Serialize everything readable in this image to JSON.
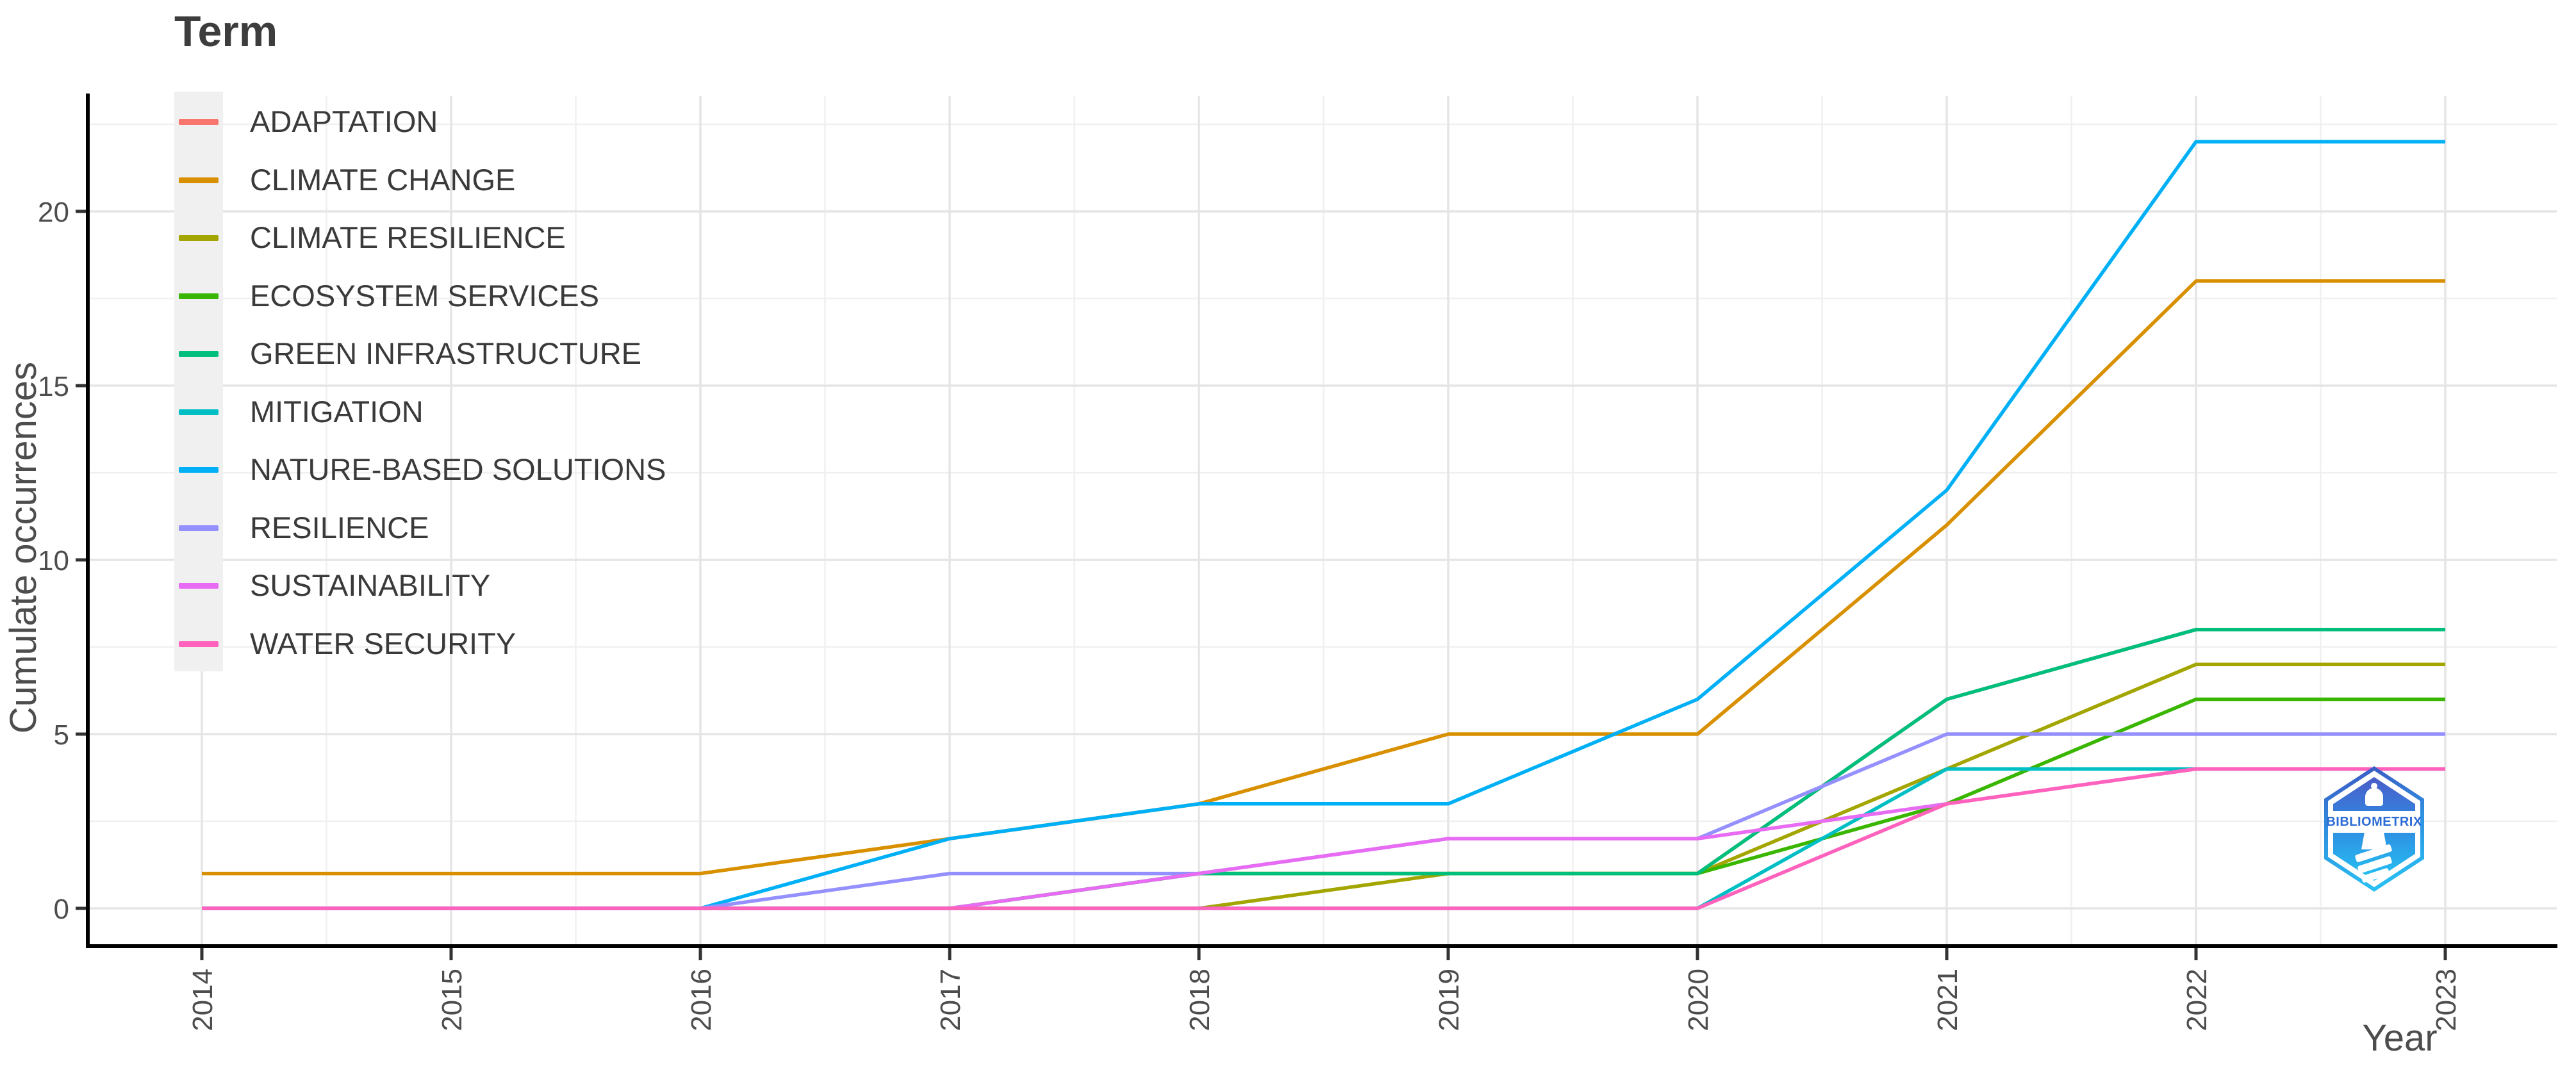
{
  "legend": {
    "title": "Term"
  },
  "x_axis": {
    "title": "Year",
    "tick_labels": [
      "2014",
      "2015",
      "2016",
      "2017",
      "2018",
      "2019",
      "2020",
      "2021",
      "2022",
      "2023"
    ]
  },
  "y_axis": {
    "title": "Cumulate occurrences",
    "tick_labels": [
      "0",
      "5",
      "10",
      "15",
      "20"
    ]
  },
  "watermark": {
    "text": "BIBLIOMETRIX"
  },
  "colors": {
    "axis_text": "#4d4d4d",
    "axis_line": "#000000",
    "tick_mark": "#333333",
    "grid_major": "#e5e5e5",
    "grid_minor": "#f0f0f0",
    "legend_key_bg": "#f0f0f0",
    "legend_text": "#3a3a3a"
  },
  "chart_data": {
    "type": "line",
    "title": "Term",
    "xlabel": "Year",
    "ylabel": "Cumulate occurrences",
    "x": [
      2014,
      2015,
      2016,
      2017,
      2018,
      2019,
      2020,
      2021,
      2022,
      2023
    ],
    "ylim": [
      0,
      22.5
    ],
    "yticks": [
      0,
      5,
      10,
      15,
      20
    ],
    "grid": "major and minor, light gray on white",
    "legend_position": "inside top-left",
    "series": [
      {
        "name": "ADAPTATION",
        "color": "#F8766D",
        "values": [
          0,
          0,
          0,
          0,
          1,
          1,
          1,
          6,
          8,
          8
        ]
      },
      {
        "name": "CLIMATE CHANGE",
        "color": "#D89000",
        "values": [
          1,
          1,
          1,
          2,
          3,
          5,
          5,
          11,
          18,
          18
        ]
      },
      {
        "name": "CLIMATE RESILIENCE",
        "color": "#A3A500",
        "values": [
          0,
          0,
          0,
          0,
          0,
          1,
          1,
          4,
          7,
          7
        ]
      },
      {
        "name": "ECOSYSTEM SERVICES",
        "color": "#39B600",
        "values": [
          0,
          0,
          0,
          0,
          1,
          1,
          1,
          3,
          6,
          6
        ]
      },
      {
        "name": "GREEN INFRASTRUCTURE",
        "color": "#00BF7D",
        "values": [
          0,
          0,
          0,
          0,
          1,
          1,
          1,
          6,
          8,
          8
        ]
      },
      {
        "name": "MITIGATION",
        "color": "#00BFC4",
        "values": [
          0,
          0,
          0,
          0,
          0,
          0,
          0,
          4,
          4,
          4
        ]
      },
      {
        "name": "NATURE-BASED SOLUTIONS",
        "color": "#00B0F6",
        "values": [
          0,
          0,
          0,
          2,
          3,
          3,
          6,
          12,
          22,
          22
        ]
      },
      {
        "name": "RESILIENCE",
        "color": "#9590FF",
        "values": [
          0,
          0,
          0,
          1,
          1,
          2,
          2,
          5,
          5,
          5
        ]
      },
      {
        "name": "SUSTAINABILITY",
        "color": "#E76BF3",
        "values": [
          0,
          0,
          0,
          0,
          1,
          2,
          2,
          3,
          4,
          4
        ]
      },
      {
        "name": "WATER SECURITY",
        "color": "#FF62BC",
        "values": [
          0,
          0,
          0,
          0,
          0,
          0,
          0,
          3,
          4,
          4
        ]
      }
    ]
  }
}
